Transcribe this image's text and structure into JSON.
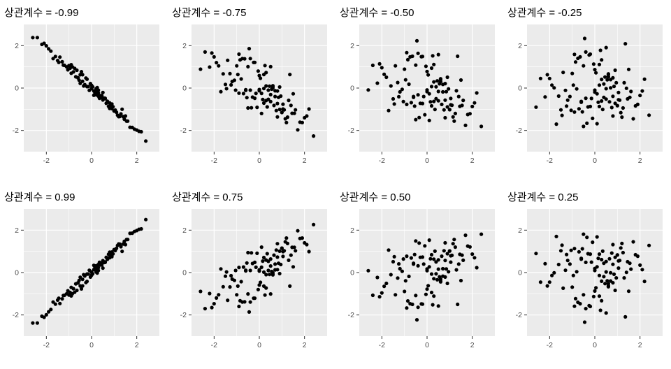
{
  "page": {
    "background": "#ffffff"
  },
  "chart_data": {
    "type": "scatter",
    "layout": {
      "rows": 2,
      "cols": 4
    },
    "style": {
      "panel_bg": "#ebebeb",
      "grid_major_color": "#ffffff",
      "grid_minor_color": "#ffffff",
      "point_color": "#000000",
      "tick_mark_color": "#333333",
      "tick_label_color": "#4d4d4d",
      "title_color": "#000000"
    },
    "axes": {
      "x_range": [
        -3,
        3
      ],
      "y_range": [
        -3,
        3
      ],
      "x_major_ticks": [
        -2,
        0,
        2
      ],
      "y_major_ticks": [
        -2,
        0,
        2
      ],
      "minor_ticks": [
        -1,
        1
      ],
      "x_tick_labels": [
        "-2",
        "0",
        "2"
      ],
      "y_tick_labels": [
        "-2",
        "0",
        "2"
      ],
      "grid": true
    },
    "shared_x": [
      0.3,
      -1.2,
      0.8,
      1.5,
      -0.4,
      0.1,
      -2.1,
      0.6,
      -0.7,
      1.1,
      -0.2,
      0.9,
      -1.6,
      0.4,
      2.2,
      -0.9,
      0,
      1.3,
      -0.5,
      0.7,
      -1.1,
      0.2,
      1.8,
      -0.3,
      -1.4,
      0.5,
      1,
      -2.4,
      0.8,
      -0.1,
      1.6,
      -0.6,
      0.3,
      -1.9,
      1.2,
      0,
      -0.8,
      2,
      -0.35,
      0.55,
      -1.3,
      0.9,
      0.15,
      -0.55,
      1.4,
      -2,
      0.25,
      0.75,
      -1,
      1.7,
      -0.15,
      0.45,
      -2.6,
      1.05,
      -0.65,
      0.35,
      1.9,
      -0.45,
      0.65,
      -1.25,
      0.05,
      1.45,
      -0.85,
      0.5,
      -1.7,
      0.85,
      2.4,
      -0.25,
      1.15,
      -0.95,
      0.6,
      -1.5,
      0.2,
      1,
      -0.05,
      0.4,
      -2.2,
      0.95,
      -0.6,
      1.35,
      0.1,
      -1.05,
      0.7,
      1.55,
      -0.75,
      0.3,
      -1.45,
      2.1,
      -0.2,
      0.5,
      -0.9,
      1.25,
      0,
      -0.5,
      0.8,
      -1.8,
      0.6,
      1.05,
      -0.4,
      0.2
    ],
    "panels": [
      {
        "title": "상관계수 = -0.99",
        "correlation": -0.99,
        "y": [
          -0.23,
          1.07,
          -0.83,
          -1.32,
          0.32,
          -0.34,
          2.11,
          -0.49,
          0.53,
          -1.14,
          0.42,
          -0.97,
          1.49,
          -0.36,
          -2.06,
          0.7,
          -0.01,
          -1.22,
          0.22,
          -0.67,
          1,
          -0.03,
          -1.86,
          0.16,
          1.46,
          -0.21,
          -1.08,
          2.38,
          -0.7,
          -0.11,
          -1.56,
          0.48,
          -0.1,
          1.85,
          -1.35,
          0.13,
          0.76,
          -1.98,
          0.1,
          -0.47,
          1.24,
          -0.75,
          -0.24,
          0.37,
          -1.35,
          1.99,
          0.02,
          -0.86,
          1.06,
          -1.85,
          0.07,
          -0.36,
          2.38,
          -1.04,
          0.84,
          -0.48,
          -1.94,
          0.77,
          -0.72,
          1.08,
          0.06,
          -1.47,
          1,
          -0.56,
          1.39,
          -0.81,
          -2.5,
          0.47,
          -1.28,
          0.94,
          -0.48,
          1.3,
          -0.17,
          -1.08,
          0.21,
          -0.45,
          2.06,
          -0.88,
          0.49,
          -1,
          -0.14,
          0.86,
          -0.62,
          -1.56,
          0.93,
          -0.38,
          1.21,
          -2.04,
          0.07,
          -0.49,
          1.1,
          -1.34,
          -0.03,
          0.63,
          -0.96,
          1.74,
          -0.5,
          -1.09,
          0.63,
          -0.32
        ]
      },
      {
        "title": "상관계수 = -0.75",
        "correlation": -0.75,
        "y": [
          0.1,
          0.31,
          -0.73,
          -0.27,
          -0.1,
          -1.2,
          1.65,
          0.08,
          -0.26,
          -1.03,
          1.21,
          -1.01,
          0.67,
          -0.1,
          -0.99,
          -0.24,
          -0.07,
          -0.58,
          -0.94,
          -0.4,
          0.37,
          0.64,
          -1.61,
          -0.43,
          1.31,
          1.01,
          -1.15,
          1.7,
          -0.14,
          -0.91,
          -1.03,
          -0.11,
          0.73,
          1.2,
          -1.63,
          0.59,
          0.43,
          -1.4,
          -0.93,
          -0.05,
          0.68,
          0.05,
          -0.54,
          -0.45,
          -0.82,
          1.47,
          1.06,
          -1.06,
          1.05,
          -1.97,
          -0.25,
          0.09,
          0.89,
          -0.76,
          1.38,
          -0.89,
          -1.63,
          1.86,
          -0.82,
          0.15,
          0.46,
          -1.19,
          1.33,
          -0.64,
          -0.17,
          -0.44,
          -2.26,
          1.21,
          -1.45,
          0.64,
          0.11,
          0.17,
          -0.02,
          -1.15,
          0.8,
          -0.53,
          0.99,
          -0.38,
          -0.08,
          0.64,
          -0.25,
          -0.1,
          -0.13,
          -1.19,
          1.39,
          -0.59,
          -0.03,
          -1.32,
          -0.48,
          -0.31,
          1.6,
          -1.37,
          -0.13,
          1.01,
          -1.36,
          1.05,
          0.01,
          -0.99,
          1.39,
          -0.71
        ]
      },
      {
        "title": "상관계수 = -0.50",
        "correlation": -0.5,
        "y": [
          0.29,
          -0.18,
          -0.57,
          0.38,
          -0.32,
          -1.53,
          1.14,
          0.4,
          -0.69,
          -0.81,
          1.49,
          -0.89,
          0.1,
          0.06,
          -0.23,
          -0.77,
          -0.09,
          -0.13,
          -1.49,
          -0.18,
          -0.06,
          0.94,
          -1.25,
          -0.72,
          1.05,
          1.58,
          -1.02,
          1.07,
          0.21,
          -1.26,
          -0.58,
          -0.44,
          1.11,
          0.65,
          -1.56,
          0.78,
          0.18,
          -0.87,
          -1.39,
          0.2,
          0.26,
          0.51,
          -0.65,
          -0.85,
          -0.4,
          0.96,
          1.52,
          -1.03,
          0.89,
          -1.76,
          -0.4,
          0.34,
          -0.09,
          -0.49,
          1.5,
          -1.01,
          -1.21,
          2.23,
          -0.77,
          -0.41,
          0.62,
          -0.86,
          1.34,
          -0.6,
          -1.06,
          -0.17,
          -1.81,
          1.48,
          -1.36,
          0.39,
          0.44,
          -0.51,
          0.07,
          -1.02,
          1.03,
          -0.5,
          0.23,
          -0.04,
          -0.4,
          1.5,
          -0.27,
          -0.64,
          0.17,
          -0.82,
          1.47,
          -0.63,
          -0.75,
          -0.7,
          -0.73,
          -0.16,
          1.67,
          -1.2,
          -0.17,
          1.08,
          -1.4,
          0.51,
          0.31,
          -0.79,
          1.64,
          -0.84
        ]
      },
      {
        "title": "상관계수 = -0.25",
        "correlation": -0.25,
        "y": [
          0.41,
          -0.57,
          -0.39,
          0.88,
          -0.48,
          -1.68,
          0.63,
          0.63,
          -0.98,
          -0.57,
          1.6,
          -0.72,
          -0.38,
          0.19,
          0.42,
          -1.13,
          -0.1,
          0.25,
          -1.81,
          0.01,
          -0.4,
          1.11,
          -0.84,
          -0.89,
          0.74,
          1.91,
          -0.83,
          0.45,
          0.48,
          -1.43,
          -0.16,
          -0.67,
          1.33,
          0.14,
          -1.37,
          0.87,
          -0.04,
          -0.35,
          -1.66,
          0.39,
          -0.11,
          0.84,
          -0.67,
          -1.12,
          -0.01,
          0.45,
          1.78,
          -0.92,
          0.69,
          -1.45,
          -0.49,
          0.52,
          -0.9,
          -0.21,
          1.47,
          -1.01,
          -0.77,
          2.34,
          -0.65,
          -0.85,
          0.72,
          -0.51,
          1.23,
          -0.52,
          -1.7,
          0.08,
          -1.28,
          1.56,
          -1.16,
          0.14,
          0.67,
          -1.03,
          0.14,
          -0.83,
          1.13,
          -0.44,
          -0.42,
          0.25,
          -0.63,
          2.09,
          -0.27,
          -1.05,
          0.4,
          -0.44,
          1.4,
          -0.61,
          -1.29,
          -0.14,
          -0.87,
          -0.03,
          1.59,
          -0.94,
          -0.19,
          1.05,
          -1.32,
          0.01,
          0.53,
          -0.55,
          1.7,
          -0.87
        ]
      },
      {
        "title": "상관계수 = 0.99",
        "correlation": 0.99,
        "y": [
          0.23,
          -1.07,
          0.83,
          1.32,
          -0.32,
          0.34,
          -2.11,
          0.49,
          -0.53,
          1.14,
          -0.42,
          0.97,
          -1.49,
          0.36,
          2.06,
          -0.7,
          0.01,
          1.22,
          -0.22,
          0.67,
          -1,
          0.03,
          1.86,
          -0.16,
          -1.46,
          0.21,
          1.08,
          -2.38,
          0.7,
          0.11,
          1.56,
          -0.48,
          0.1,
          -1.85,
          1.35,
          -0.13,
          -0.76,
          1.98,
          -0.1,
          0.47,
          -1.24,
          0.75,
          0.24,
          -0.37,
          1.35,
          -1.99,
          -0.02,
          0.86,
          -1.06,
          1.85,
          -0.07,
          0.36,
          -2.38,
          1.04,
          -0.84,
          0.48,
          1.94,
          -0.77,
          0.72,
          -1.08,
          -0.06,
          1.47,
          -1,
          0.56,
          -1.39,
          0.81,
          2.5,
          -0.47,
          1.28,
          -0.94,
          0.48,
          -1.3,
          0.17,
          1.08,
          -0.21,
          0.45,
          -2.06,
          0.88,
          -0.49,
          1,
          0.14,
          -0.86,
          0.62,
          1.56,
          -0.93,
          0.38,
          -1.21,
          2.04,
          -0.07,
          0.49,
          -1.1,
          1.34,
          0.03,
          -0.63,
          0.96,
          -1.74,
          0.5,
          1.09,
          -0.63,
          0.32
        ]
      },
      {
        "title": "상관계수 = 0.75",
        "correlation": 0.75,
        "y": [
          -0.1,
          -0.31,
          0.73,
          0.27,
          0.1,
          1.2,
          -1.65,
          -0.08,
          0.26,
          1.03,
          -1.21,
          1.01,
          -0.67,
          0.1,
          0.99,
          0.24,
          0.07,
          0.58,
          0.94,
          0.4,
          -0.37,
          -0.64,
          1.61,
          0.43,
          -1.31,
          -1.01,
          1.15,
          -1.7,
          0.14,
          0.91,
          1.03,
          0.11,
          -0.73,
          -1.2,
          1.63,
          -0.59,
          -0.43,
          1.4,
          0.93,
          0.05,
          -0.68,
          -0.05,
          0.54,
          0.45,
          0.82,
          -1.47,
          -1.06,
          1.06,
          -1.05,
          1.97,
          0.25,
          -0.09,
          -0.89,
          0.76,
          -1.38,
          0.89,
          1.63,
          -1.86,
          0.82,
          -0.15,
          -0.46,
          1.19,
          -1.33,
          0.64,
          0.17,
          0.44,
          2.26,
          -1.21,
          1.45,
          -0.64,
          -0.11,
          -0.17,
          0.02,
          1.15,
          -0.8,
          0.53,
          -0.99,
          0.38,
          0.08,
          -0.64,
          0.25,
          0.1,
          0.13,
          1.19,
          -1.39,
          0.59,
          0.03,
          1.32,
          0.48,
          0.31,
          -1.6,
          1.37,
          0.13,
          -1.01,
          1.36,
          -1.05,
          -0.01,
          0.99,
          -1.39,
          0.71
        ]
      },
      {
        "title": "상관계수 = 0.50",
        "correlation": 0.5,
        "y": [
          -0.29,
          0.18,
          0.57,
          -0.38,
          0.32,
          1.53,
          -1.14,
          -0.4,
          0.69,
          0.81,
          -1.49,
          0.89,
          -0.1,
          -0.06,
          0.23,
          0.77,
          0.09,
          0.13,
          1.49,
          0.18,
          0.06,
          -0.94,
          1.25,
          0.72,
          -1.05,
          -1.58,
          1.02,
          -1.07,
          -0.21,
          1.26,
          0.58,
          0.44,
          -1.11,
          -0.65,
          1.56,
          -0.78,
          -0.18,
          0.87,
          1.39,
          -0.2,
          -0.26,
          -0.51,
          0.65,
          0.85,
          0.4,
          -0.96,
          -1.52,
          1.03,
          -0.89,
          1.76,
          0.4,
          -0.34,
          0.09,
          0.49,
          -1.5,
          1.01,
          1.21,
          -2.23,
          0.77,
          0.41,
          -0.62,
          0.86,
          -1.34,
          0.6,
          1.06,
          0.17,
          1.81,
          -1.48,
          1.36,
          -0.39,
          -0.44,
          0.51,
          -0.07,
          1.02,
          -1.03,
          0.5,
          -0.23,
          0.04,
          0.4,
          -1.5,
          0.27,
          0.64,
          -0.17,
          0.82,
          -1.47,
          0.63,
          0.75,
          0.7,
          0.73,
          0.16,
          -1.67,
          1.2,
          0.17,
          -1.08,
          1.4,
          -0.51,
          -0.31,
          0.79,
          -1.64,
          0.84
        ]
      },
      {
        "title": "상관계수 = 0.25",
        "correlation": 0.25,
        "y": [
          -0.41,
          0.57,
          0.39,
          -0.88,
          0.48,
          1.68,
          -0.63,
          -0.63,
          0.98,
          0.57,
          -1.6,
          0.72,
          0.38,
          -0.19,
          -0.42,
          1.13,
          0.1,
          -0.25,
          1.81,
          -0.01,
          0.4,
          -1.11,
          0.84,
          0.89,
          -0.74,
          -1.91,
          0.83,
          -0.45,
          -0.48,
          1.43,
          0.16,
          0.67,
          -1.33,
          -0.14,
          1.37,
          -0.87,
          0.04,
          0.35,
          1.66,
          -0.39,
          0.11,
          -0.84,
          0.67,
          1.12,
          0.01,
          -0.45,
          -1.78,
          0.92,
          -0.69,
          1.45,
          0.49,
          -0.52,
          0.9,
          0.21,
          -1.47,
          1.01,
          0.77,
          -2.34,
          0.65,
          0.85,
          -0.72,
          0.51,
          -1.23,
          0.52,
          1.7,
          -0.08,
          1.28,
          -1.56,
          1.16,
          -0.14,
          -0.67,
          1.03,
          -0.14,
          0.83,
          -1.13,
          0.44,
          0.42,
          -0.25,
          0.63,
          -2.09,
          0.27,
          1.05,
          -0.4,
          0.44,
          -1.4,
          0.61,
          1.29,
          0.14,
          0.87,
          0.03,
          -1.59,
          0.94,
          0.19,
          -1.05,
          1.32,
          -0.01,
          -0.53,
          0.55,
          -1.7,
          0.87
        ]
      }
    ]
  }
}
